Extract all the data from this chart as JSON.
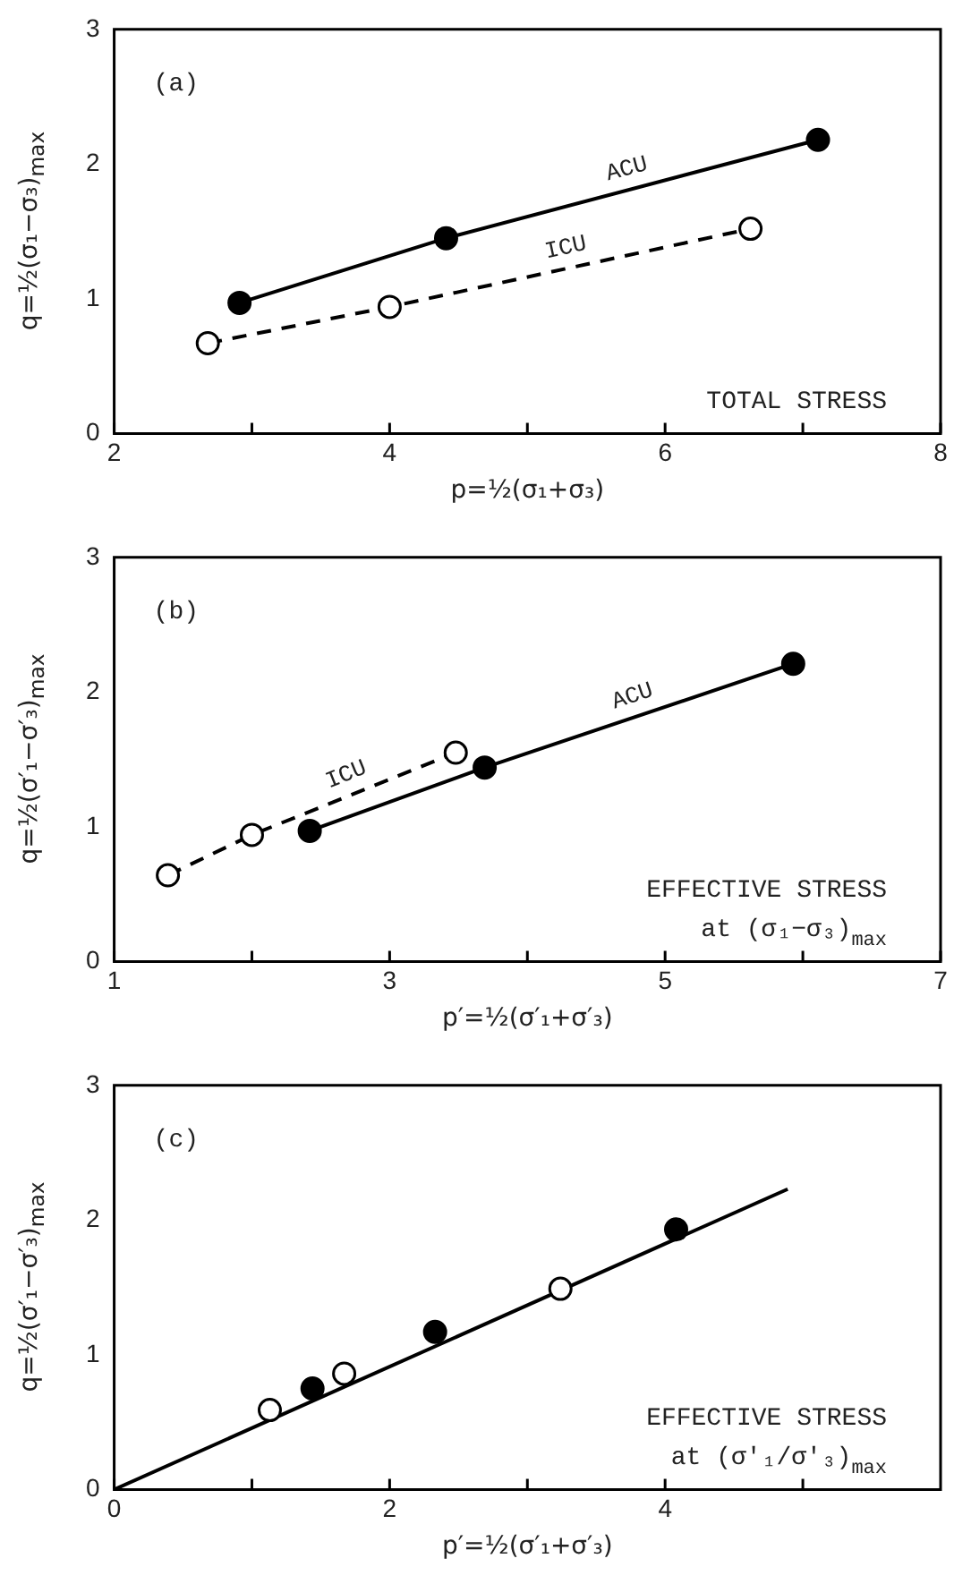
{
  "chart_data": [
    {
      "type": "line",
      "xlabel": "p=½(σ₁+σ₃)",
      "ylabel": "q=½(σ₁−σ₃)$_{max}$",
      "xlim": [
        2,
        8
      ],
      "xticks": [
        2,
        {
          "value": 3,
          "label": null
        },
        4,
        {
          "value": 5,
          "label": null
        },
        6,
        {
          "value": 7,
          "label": null
        },
        8
      ],
      "ylim": [
        0,
        3
      ],
      "yticks": [
        0,
        1,
        2,
        3
      ],
      "grid": false,
      "legend": false,
      "marker": "circle",
      "annotations": [
        "(a)",
        "TOTAL STRESS"
      ],
      "series": [
        {
          "name": "ACU",
          "color": "#000000",
          "x": [
            2.91,
            4.41,
            7.11
          ],
          "values": [
            0.97,
            1.45,
            2.18
          ]
        },
        {
          "name": "ICU",
          "color": "#000000",
          "line_style": "dashed",
          "x": [
            2.68,
            4.0,
            6.62
          ],
          "values": [
            0.67,
            0.94,
            1.52
          ]
        }
      ]
    },
    {
      "type": "line",
      "xlabel": "p′=½(σ′₁+σ′₃)",
      "ylabel": "q=½(σ′₁−σ′₃)$_{max}$",
      "xlim": [
        1,
        7
      ],
      "xticks": [
        1,
        {
          "value": 2,
          "label": null
        },
        3,
        {
          "value": 4,
          "label": null
        },
        5,
        {
          "value": 6,
          "label": null
        },
        7
      ],
      "ylim": [
        0,
        3
      ],
      "yticks": [
        0,
        1,
        2,
        3
      ],
      "grid": false,
      "legend": false,
      "marker": "circle",
      "annotations": [
        "(b)",
        "EFFECTIVE STRESS",
        "at (σ₁−σ₃)$_{max}$"
      ],
      "series": [
        {
          "name": "ACU",
          "color": "#000000",
          "x": [
            2.42,
            3.69,
            5.93
          ],
          "values": [
            0.97,
            1.44,
            2.21
          ]
        },
        {
          "name": "ICU",
          "color": "#000000",
          "line_style": "dashed",
          "x": [
            1.39,
            2.0,
            3.48
          ],
          "values": [
            0.64,
            0.94,
            1.55
          ]
        }
      ]
    },
    {
      "type": "scatter",
      "xlabel": "p′=½(σ′₁+σ′₃)",
      "ylabel": "q=½(σ′₁−σ′₃)$_{max}$",
      "xlim": [
        0,
        6
      ],
      "xticks": [
        0,
        {
          "value": 1,
          "label": null
        },
        2,
        {
          "value": 3,
          "label": null
        },
        4,
        {
          "value": 5,
          "label": null
        }
      ],
      "ylim": [
        0,
        3
      ],
      "yticks": [
        0,
        1,
        2,
        3
      ],
      "grid": false,
      "legend": false,
      "marker": "circle",
      "annotations": [
        "(c)",
        "EFFECTIVE STRESS",
        "at (σ′₁/σ′₃)$_{max}$"
      ],
      "series": [
        {
          "color": "#000000",
          "x": [
            1.44,
            2.33,
            4.08
          ],
          "values": [
            0.75,
            1.17,
            1.93
          ]
        },
        {
          "color": "#000000",
          "x": [
            1.13,
            1.67,
            3.24
          ],
          "values": [
            0.59,
            0.86,
            1.49
          ]
        },
        {
          "type": "line",
          "color": "#000000",
          "marker": "none",
          "x": [
            0,
            4.89
          ],
          "values": [
            0,
            2.23
          ]
        }
      ]
    }
  ]
}
